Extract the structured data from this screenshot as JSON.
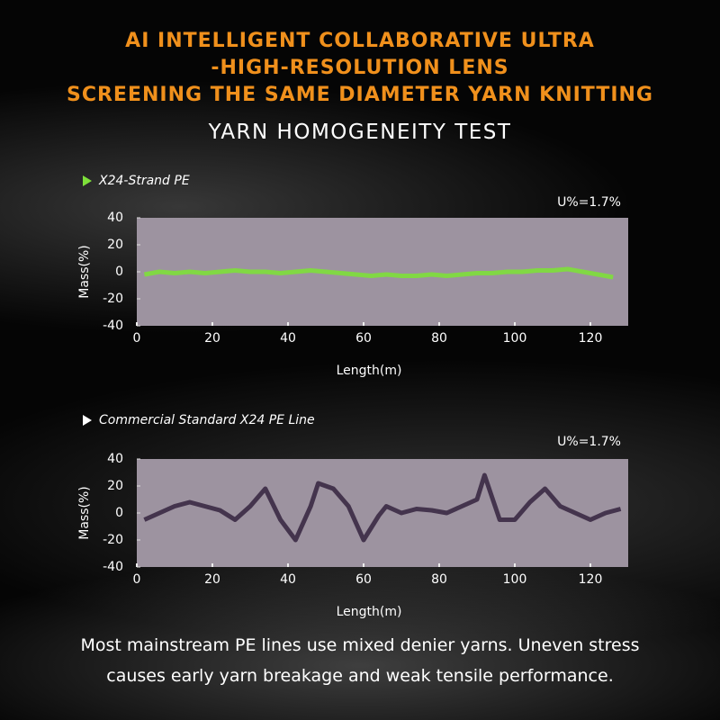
{
  "header": {
    "title_lines": [
      "AI INTELLIGENT COLLABORATIVE ULTRA",
      "-HIGH-RESOLUTION LENS",
      "SCREENING THE SAME DIAMETER YARN KNITTING"
    ],
    "subtitle": "YARN HOMOGENEITY TEST"
  },
  "chart_data": [
    {
      "type": "line",
      "title": "X24-Strand PE",
      "annotation": "U%=1.7%",
      "xlabel": "Length(m)",
      "ylabel": "Mass(%)",
      "color": "#7ee03a",
      "x": [
        2,
        6,
        10,
        14,
        18,
        22,
        26,
        30,
        34,
        38,
        42,
        46,
        50,
        54,
        58,
        62,
        66,
        70,
        74,
        78,
        82,
        86,
        90,
        94,
        98,
        102,
        106,
        110,
        114,
        118,
        122,
        126
      ],
      "values": [
        -2,
        0,
        -1,
        0,
        -1,
        0,
        1,
        0,
        0,
        -1,
        0,
        1,
        0,
        -1,
        -2,
        -3,
        -2,
        -3,
        -3,
        -2,
        -3,
        -2,
        -1,
        -1,
        0,
        0,
        1,
        1,
        2,
        0,
        -2,
        -4
      ],
      "xlim": [
        0,
        130
      ],
      "ylim": [
        -40,
        40
      ],
      "xticks": [
        0,
        20,
        40,
        60,
        80,
        100,
        120
      ],
      "yticks": [
        -40,
        -20,
        0,
        20,
        40
      ]
    },
    {
      "type": "line",
      "title": "Commercial Standard X24 PE Line",
      "annotation": "U%=1.7%",
      "xlabel": "Length(m)",
      "ylabel": "Mass(%)",
      "color": "#3b2a44",
      "x": [
        2,
        6,
        10,
        14,
        18,
        22,
        26,
        30,
        34,
        38,
        42,
        46,
        48,
        52,
        56,
        60,
        64,
        66,
        70,
        74,
        78,
        82,
        86,
        90,
        92,
        96,
        100,
        104,
        108,
        112,
        116,
        120,
        124,
        128
      ],
      "values": [
        -5,
        0,
        5,
        8,
        5,
        2,
        -5,
        5,
        18,
        -5,
        -20,
        5,
        22,
        18,
        5,
        -20,
        -2,
        5,
        0,
        3,
        2,
        0,
        5,
        10,
        28,
        -5,
        -5,
        8,
        18,
        5,
        0,
        -5,
        0,
        3
      ],
      "xlim": [
        0,
        130
      ],
      "ylim": [
        -40,
        40
      ],
      "xticks": [
        0,
        20,
        40,
        60,
        80,
        100,
        120
      ],
      "yticks": [
        -40,
        -20,
        0,
        20,
        40
      ]
    }
  ],
  "footer": [
    "Most mainstream PE lines use mixed denier yarns. Uneven stress",
    "causes early yarn breakage and weak tensile performance."
  ]
}
